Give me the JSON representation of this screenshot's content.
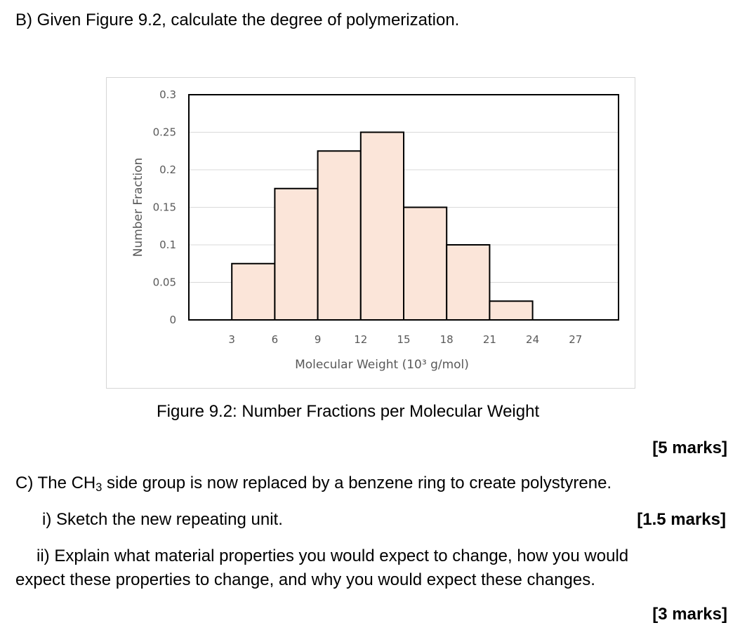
{
  "question_b": "B) Given Figure 9.2, calculate the degree of polymerization.",
  "figure_caption": "Figure 9.2: Number Fractions per Molecular Weight",
  "marks_b": "[5 marks]",
  "question_c": {
    "prefix": "C) The CH",
    "subscript": "3",
    "suffix": " side group is now replaced by a benzene ring to create polystyrene."
  },
  "part_i": "i) Sketch the new repeating unit.",
  "marks_i": "[1.5 marks]",
  "part_ii_line1": "ii) Explain what material properties you would expect to change, how you would",
  "part_ii_line2": "expect these properties to change, and why you would expect these changes.",
  "marks_ii": "[3 marks]",
  "colors": {
    "bar_fill": "#fbe5d9",
    "bar_stroke": "#000000",
    "gridline": "#d9d9d9",
    "tick_text": "#595959"
  },
  "chart_data": {
    "type": "bar",
    "title": "",
    "xlabel": "Molecular Weight (10³ g/mol)",
    "ylabel": "Number Fraction",
    "x_ticks": [
      "3",
      "6",
      "9",
      "12",
      "15",
      "18",
      "21",
      "24",
      "27"
    ],
    "y_ticks": [
      "0",
      "0.05",
      "0.1",
      "0.15",
      "0.2",
      "0.25",
      "0.3"
    ],
    "ylim": [
      0,
      0.3
    ],
    "xlim": [
      0,
      30
    ],
    "grid": true,
    "bins": [
      {
        "range": [
          3,
          6
        ],
        "value": 0.075
      },
      {
        "range": [
          6,
          9
        ],
        "value": 0.175
      },
      {
        "range": [
          9,
          12
        ],
        "value": 0.225
      },
      {
        "range": [
          12,
          15
        ],
        "value": 0.25
      },
      {
        "range": [
          15,
          18
        ],
        "value": 0.15
      },
      {
        "range": [
          18,
          21
        ],
        "value": 0.1
      },
      {
        "range": [
          21,
          24
        ],
        "value": 0.025
      }
    ]
  }
}
